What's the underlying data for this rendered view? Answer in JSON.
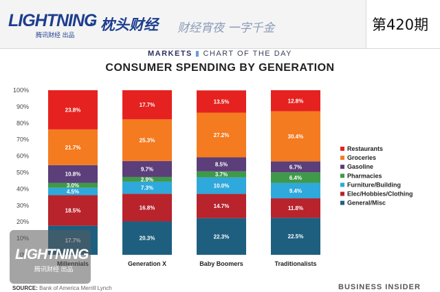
{
  "header": {
    "logo_text": "LIGHTNING",
    "logo_sub": "腾讯财经 出品",
    "dot": "·",
    "brand": "枕头财经",
    "tagline": "财经宵夜 一字千金",
    "issue": "第420期"
  },
  "chart_header": {
    "markets": "MARKETS",
    "chart_of_day": "CHART OF THE DAY"
  },
  "footer": {
    "source_label": "SOURCE:",
    "source_text": "Bank of America Merrill Lynch",
    "publisher": "BUSINESS INSIDER"
  },
  "watermark": {
    "logo_text": "LIGHTNING",
    "logo_sub": "腾讯财经 出品"
  },
  "chart_data": {
    "type": "bar",
    "stacked": true,
    "title": "CONSUMER SPENDING BY GENERATION",
    "xlabel": "",
    "ylabel": "",
    "ylim": [
      0,
      100
    ],
    "yticks": [
      "0%",
      "10%",
      "20%",
      "30%",
      "40%",
      "50%",
      "60%",
      "70%",
      "80%",
      "90%",
      "100%"
    ],
    "grid": false,
    "legend_position": "right",
    "categories": [
      "Millennials",
      "Generation X",
      "Baby Boomers",
      "Traditionalists"
    ],
    "series": [
      {
        "name": "General/Misc",
        "color": "#1e5f80",
        "values": [
          17.7,
          20.3,
          22.3,
          22.5
        ]
      },
      {
        "name": "Elec/Hobbies/Clothing",
        "color": "#b8232c",
        "values": [
          18.5,
          16.8,
          14.7,
          11.8
        ]
      },
      {
        "name": "Furniture/Building",
        "color": "#2fa8dc",
        "values": [
          4.5,
          7.3,
          10.0,
          9.4
        ]
      },
      {
        "name": "Pharmacies",
        "color": "#3e9a49",
        "values": [
          3.0,
          2.9,
          3.7,
          6.4
        ]
      },
      {
        "name": "Gasoline",
        "color": "#5b3e7a",
        "values": [
          10.8,
          9.7,
          8.5,
          6.7
        ]
      },
      {
        "name": "Groceries",
        "color": "#f47b20",
        "values": [
          21.7,
          25.3,
          27.2,
          30.4
        ]
      },
      {
        "name": "Restaurants",
        "color": "#e5221f",
        "values": [
          23.8,
          17.7,
          13.5,
          12.8
        ]
      }
    ]
  }
}
